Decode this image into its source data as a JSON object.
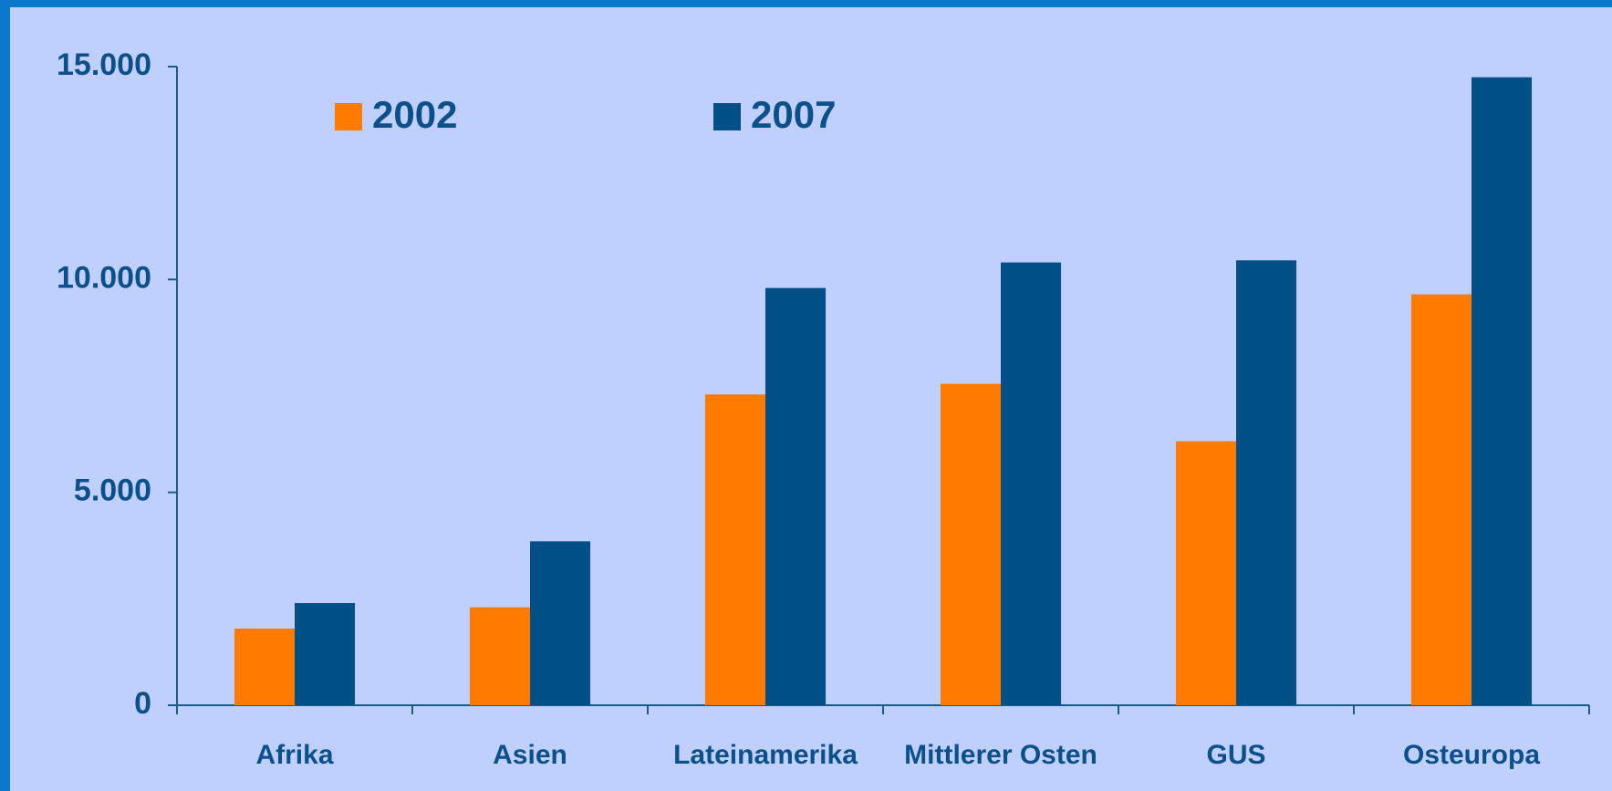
{
  "chart_data": {
    "type": "bar",
    "categories": [
      "Afrika",
      "Asien",
      "Lateinamerika",
      "Mittlerer Osten",
      "GUS",
      "Osteuropa"
    ],
    "series": [
      {
        "name": "2002",
        "color": "#ff7b00",
        "values": [
          1800,
          2300,
          7300,
          7550,
          6200,
          9650
        ]
      },
      {
        "name": "2007",
        "color": "#004f86",
        "values": [
          2400,
          3850,
          9800,
          10400,
          10450,
          14750
        ]
      }
    ],
    "ylim": [
      0,
      15000
    ],
    "yticks": [
      0,
      {
        "value": 5000,
        "label": "5.000"
      },
      {
        "value": 10000,
        "label": "10.000"
      },
      {
        "value": 15000,
        "label": "15.000"
      }
    ],
    "grid": false
  }
}
